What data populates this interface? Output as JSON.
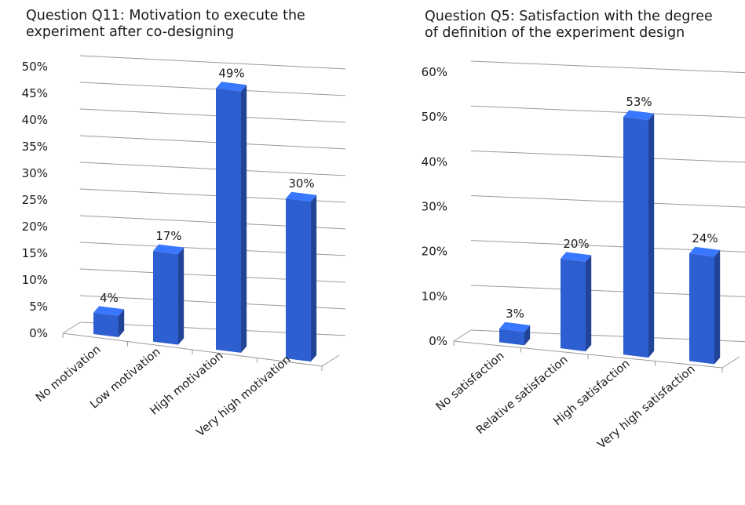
{
  "chart_data": [
    {
      "type": "bar",
      "title": "Question Q11: Motivation to execute the\nexperiment after co-designing",
      "categories": [
        "No motivation",
        "Low motivation",
        "High motivation",
        "Very high motivation"
      ],
      "values": [
        4,
        17,
        49,
        30
      ],
      "data_labels": [
        "4%",
        "17%",
        "49%",
        "30%"
      ],
      "y_ticks": [
        "0%",
        "5%",
        "10%",
        "15%",
        "20%",
        "25%",
        "30%",
        "35%",
        "40%",
        "45%",
        "50%"
      ],
      "ylim": [
        0,
        50
      ],
      "grid": true,
      "style": "3d-column",
      "bar_color": "#2E5FD0"
    },
    {
      "type": "bar",
      "title": "Question Q5: Satisfaction with the degree\nof definition of the experiment design",
      "categories": [
        "No satisfaction",
        "Relative satisfaction",
        "High satisfaction",
        "Very high satisfaction"
      ],
      "values": [
        3,
        20,
        53,
        24
      ],
      "data_labels": [
        "3%",
        "20%",
        "53%",
        "24%"
      ],
      "y_ticks": [
        "0%",
        "10%",
        "20%",
        "30%",
        "40%",
        "50%",
        "60%"
      ],
      "ylim": [
        0,
        60
      ],
      "grid": true,
      "style": "3d-column",
      "bar_color": "#2E5FD0"
    }
  ]
}
